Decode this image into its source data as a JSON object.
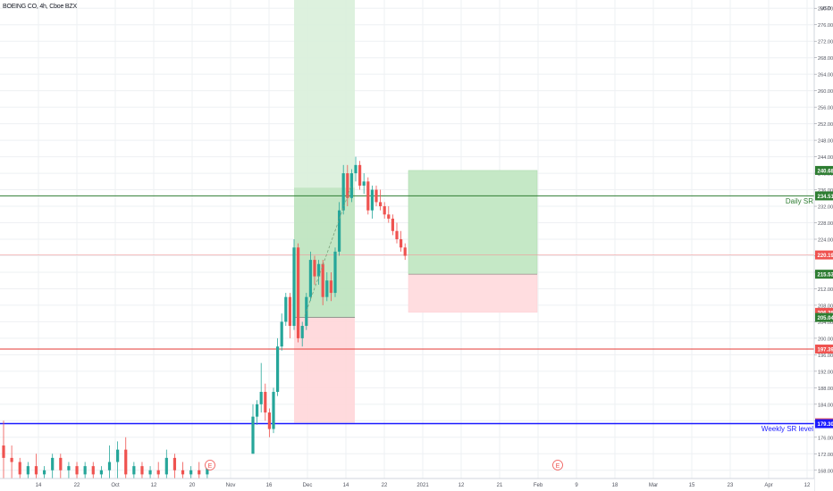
{
  "header": {
    "symbol_title": "BOEING CO, 4h, Cboe BZX"
  },
  "price_axis": {
    "currency": "USD",
    "ticks": [
      "280.00",
      "276.00",
      "272.00",
      "268.00",
      "264.00",
      "260.00",
      "256.00",
      "252.00",
      "248.00",
      "244.00",
      "240.00",
      "236.00",
      "232.00",
      "228.00",
      "224.00",
      "220.00",
      "216.00",
      "212.00",
      "208.00",
      "204.00",
      "200.00",
      "196.00",
      "192.00",
      "188.00",
      "184.00",
      "180.00",
      "176.00",
      "172.00",
      "168.00"
    ],
    "badges": [
      {
        "text": "240.68",
        "color": "#2e7d32",
        "value": 240.68
      },
      {
        "text": "234.51",
        "color": "#2e7d32",
        "value": 234.51
      },
      {
        "text": "220.19",
        "color": "#ef5350",
        "value": 220.19
      },
      {
        "text": "215.53",
        "color": "#2e7d32",
        "value": 215.53
      },
      {
        "text": "206.28",
        "color": "#ef5350",
        "value": 206.28
      },
      {
        "text": "205.04",
        "color": "#2e7d32",
        "value": 205.04
      },
      {
        "text": "197.39",
        "color": "#ef5350",
        "value": 197.39
      },
      {
        "text": "179.51",
        "color": "#ef5350",
        "value": 179.51
      },
      {
        "text": "179.30",
        "color": "#1a1aff",
        "value": 179.3
      }
    ]
  },
  "time_axis": {
    "labels": [
      "14",
      "22",
      "Oct",
      "12",
      "20",
      "Nov",
      "16",
      "Dec",
      "14",
      "22",
      "2021",
      "12",
      "21",
      "Feb",
      "9",
      "18",
      "Mar",
      "15",
      "23",
      "Apr",
      "12"
    ]
  },
  "annotations": {
    "daily_sr": {
      "label": "Daily SR",
      "price": 234.51,
      "color": "#2e7d32"
    },
    "red_level": {
      "price": 197.39,
      "color": "#e53935"
    },
    "weekly_sr": {
      "label": "Weekly SR level",
      "price": 179.3,
      "color": "#1a1aff"
    },
    "earnings_marker": "E"
  },
  "colors": {
    "up": "#26a69a",
    "down": "#ef5350",
    "profit_zone": "#c8e6c9",
    "loss_zone": "#ffcdd2"
  },
  "chart_data": {
    "type": "candlestick",
    "y_axis_range": [
      166,
      282
    ],
    "positions": [
      {
        "name": "long-position-1",
        "entry": 205.04,
        "target_top": 282,
        "inner_target": 236.5,
        "stop": 179.51
      },
      {
        "name": "long-position-2",
        "entry": 215.53,
        "target": 240.68,
        "stop": 206.28
      }
    ],
    "series": [
      {
        "date": "Sep 8",
        "open": 174,
        "high": 180,
        "low": 166,
        "close": 171
      },
      {
        "date": "Sep 9",
        "open": 171,
        "high": 174,
        "low": 166,
        "close": 170
      },
      {
        "date": "Sep 11",
        "open": 170,
        "high": 171,
        "low": 166,
        "close": 167
      },
      {
        "date": "Sep 14",
        "open": 167,
        "high": 170,
        "low": 166,
        "close": 169
      },
      {
        "date": "Sep 15",
        "open": 169,
        "high": 172,
        "low": 166,
        "close": 167
      },
      {
        "date": "Sep 17",
        "open": 167,
        "high": 169,
        "low": 166,
        "close": 168
      },
      {
        "date": "Sep 18",
        "open": 168,
        "high": 172,
        "low": 166,
        "close": 171
      },
      {
        "date": "Sep 21",
        "open": 171,
        "high": 172,
        "low": 166,
        "close": 168
      },
      {
        "date": "Sep 23",
        "open": 168,
        "high": 170,
        "low": 166,
        "close": 169
      },
      {
        "date": "Sep 25",
        "open": 169,
        "high": 170,
        "low": 166,
        "close": 167
      },
      {
        "date": "Sep 28",
        "open": 167,
        "high": 170,
        "low": 166,
        "close": 169
      },
      {
        "date": "Sep 30",
        "open": 169,
        "high": 170,
        "low": 166,
        "close": 167
      },
      {
        "date": "Oct 2",
        "open": 167,
        "high": 169,
        "low": 166,
        "close": 168
      },
      {
        "date": "Oct 5",
        "open": 168,
        "high": 174,
        "low": 166,
        "close": 170
      },
      {
        "date": "Oct 7",
        "open": 170,
        "high": 175,
        "low": 166,
        "close": 173
      },
      {
        "date": "Oct 8",
        "open": 173,
        "high": 176,
        "low": 166,
        "close": 167
      },
      {
        "date": "Oct 9",
        "open": 167,
        "high": 170,
        "low": 166,
        "close": 169
      },
      {
        "date": "Oct 12",
        "open": 169,
        "high": 170,
        "low": 166,
        "close": 167
      },
      {
        "date": "Oct 13",
        "open": 167,
        "high": 169,
        "low": 166,
        "close": 168
      },
      {
        "date": "Oct 14",
        "open": 168,
        "high": 170,
        "low": 166,
        "close": 167
      },
      {
        "date": "Oct 19",
        "open": 167,
        "high": 173,
        "low": 166,
        "close": 171
      },
      {
        "date": "Oct 20",
        "open": 171,
        "high": 172,
        "low": 166,
        "close": 168
      },
      {
        "date": "Oct 21",
        "open": 168,
        "high": 170,
        "low": 166,
        "close": 167
      },
      {
        "date": "Oct 23",
        "open": 167,
        "high": 169,
        "low": 166,
        "close": 168
      },
      {
        "date": "Oct 26",
        "open": 168,
        "high": 170,
        "low": 166,
        "close": 167
      },
      {
        "date": "Oct 27",
        "open": 167,
        "high": 170,
        "low": 166,
        "close": 169
      },
      {
        "date": "Nov 9",
        "open": 172,
        "high": 184,
        "low": 172,
        "close": 181
      },
      {
        "date": "Nov 10",
        "open": 181,
        "high": 185,
        "low": 179,
        "close": 184
      },
      {
        "date": "Nov 11",
        "open": 184,
        "high": 194,
        "low": 182,
        "close": 187
      },
      {
        "date": "Nov 11b",
        "open": 187,
        "high": 189,
        "low": 180,
        "close": 182
      },
      {
        "date": "Nov 12",
        "open": 182,
        "high": 183,
        "low": 176,
        "close": 178
      },
      {
        "date": "Nov 13",
        "open": 178,
        "high": 188,
        "low": 177,
        "close": 187
      },
      {
        "date": "Nov 16",
        "open": 187,
        "high": 200,
        "low": 186,
        "close": 198
      },
      {
        "date": "Nov 16b",
        "open": 198,
        "high": 206,
        "low": 197,
        "close": 204
      },
      {
        "date": "Nov 17",
        "open": 204,
        "high": 211,
        "low": 203,
        "close": 210
      },
      {
        "date": "Nov 17b",
        "open": 210,
        "high": 211,
        "low": 200,
        "close": 203
      },
      {
        "date": "Nov 18",
        "open": 203,
        "high": 224,
        "low": 202,
        "close": 222
      },
      {
        "date": "Nov 18b",
        "open": 222,
        "high": 223,
        "low": 199,
        "close": 200
      },
      {
        "date": "Nov 19",
        "open": 200,
        "high": 204,
        "low": 198,
        "close": 203
      },
      {
        "date": "Nov 20",
        "open": 203,
        "high": 211,
        "low": 202,
        "close": 210
      },
      {
        "date": "Nov 23",
        "open": 210,
        "high": 221,
        "low": 209,
        "close": 219
      },
      {
        "date": "Nov 23b",
        "open": 219,
        "high": 220,
        "low": 213,
        "close": 215
      },
      {
        "date": "Nov 24",
        "open": 215,
        "high": 219,
        "low": 213,
        "close": 218
      },
      {
        "date": "Nov 25",
        "open": 218,
        "high": 219,
        "low": 208,
        "close": 210
      },
      {
        "date": "Nov 27",
        "open": 210,
        "high": 216,
        "low": 209,
        "close": 214
      },
      {
        "date": "Nov 30",
        "open": 214,
        "high": 216,
        "low": 209,
        "close": 211
      },
      {
        "date": "Dec 1",
        "open": 211,
        "high": 222,
        "low": 210,
        "close": 221
      },
      {
        "date": "Dec 2",
        "open": 221,
        "high": 233,
        "low": 220,
        "close": 231
      },
      {
        "date": "Dec 2b",
        "open": 231,
        "high": 242,
        "low": 230,
        "close": 240
      },
      {
        "date": "Dec 3",
        "open": 240,
        "high": 242,
        "low": 232,
        "close": 234
      },
      {
        "date": "Dec 4",
        "open": 234,
        "high": 241,
        "low": 233,
        "close": 240
      },
      {
        "date": "Dec 7",
        "open": 240,
        "high": 244,
        "low": 238,
        "close": 242
      },
      {
        "date": "Dec 7b",
        "open": 242,
        "high": 243,
        "low": 236,
        "close": 237
      },
      {
        "date": "Dec 8",
        "open": 237,
        "high": 240,
        "low": 235,
        "close": 238
      },
      {
        "date": "Dec 9",
        "open": 238,
        "high": 239,
        "low": 230,
        "close": 231
      },
      {
        "date": "Dec 10",
        "open": 231,
        "high": 237,
        "low": 229,
        "close": 236
      },
      {
        "date": "Dec 11",
        "open": 236,
        "high": 237,
        "low": 232,
        "close": 233
      },
      {
        "date": "Dec 14",
        "open": 233,
        "high": 236,
        "low": 231,
        "close": 232
      },
      {
        "date": "Dec 15",
        "open": 232,
        "high": 233,
        "low": 229,
        "close": 230
      },
      {
        "date": "Dec 16",
        "open": 230,
        "high": 232,
        "low": 228,
        "close": 229
      },
      {
        "date": "Dec 17",
        "open": 229,
        "high": 230,
        "low": 225,
        "close": 226
      },
      {
        "date": "Dec 18",
        "open": 226,
        "high": 228,
        "low": 223,
        "close": 224
      },
      {
        "date": "Dec 18b",
        "open": 224,
        "high": 226,
        "low": 221,
        "close": 222
      },
      {
        "date": "Dec 21",
        "open": 222,
        "high": 223,
        "low": 219,
        "close": 220
      }
    ]
  }
}
